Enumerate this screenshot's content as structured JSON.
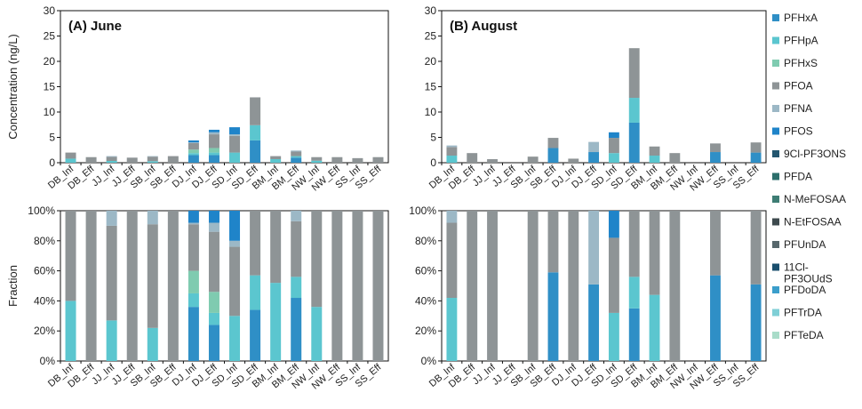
{
  "chart_data": {
    "type": "stacked-bar",
    "legend": [
      {
        "name": "PFHxA",
        "color": "#2f8fc6"
      },
      {
        "name": "PFHpA",
        "color": "#5bc6cf"
      },
      {
        "name": "PFHxS",
        "color": "#7fcbb0"
      },
      {
        "name": "PFOA",
        "color": "#8e9496"
      },
      {
        "name": "PFNA",
        "color": "#9cb8c6"
      },
      {
        "name": "PFOS",
        "color": "#1f84c9"
      },
      {
        "name": "9Cl-PF3ONS",
        "color": "#23566f"
      },
      {
        "name": "PFDA",
        "color": "#2d6f6c"
      },
      {
        "name": "N-MeFOSAA",
        "color": "#3e7d74"
      },
      {
        "name": "N-EtFOSAA",
        "color": "#3e4a4e"
      },
      {
        "name": "PFUnDA",
        "color": "#57686c"
      },
      {
        "name": "11Cl-PF3OUdS",
        "color": "#1a4f6e"
      },
      {
        "name": "PFDoDA",
        "color": "#3b9ecb"
      },
      {
        "name": "PFTrDA",
        "color": "#7fcfd6"
      },
      {
        "name": "PFTeDA",
        "color": "#a9dcc9"
      }
    ],
    "categories": [
      "DB_Inf",
      "DB_Eff",
      "JJ_Inf",
      "JJ_Eff",
      "SB_Inf",
      "SB_Eff",
      "DJ_Inf",
      "DJ_Eff",
      "SD_Inf",
      "SD_Eff",
      "BM_Inf",
      "BM_Eff",
      "NW_Inf",
      "NW_Eff",
      "SS_Inf",
      "SS_Eff"
    ],
    "concentration_axis": {
      "ylabel": "Concentration (ng/L)",
      "ylim": [
        0,
        30
      ],
      "ticks": [
        "0",
        "5",
        "10",
        "15",
        "20",
        "25",
        "30"
      ]
    },
    "fraction_axis": {
      "ylabel": "Fraction",
      "ylim": [
        0,
        100
      ],
      "ticks": [
        "0%",
        "20%",
        "40%",
        "60%",
        "80%",
        "100%"
      ]
    },
    "panels": [
      {
        "title": "(A) June",
        "concentration": [
          [
            {
              "s": "PFHpA",
              "v": 0.8
            },
            {
              "s": "PFOA",
              "v": 1.2
            }
          ],
          [
            {
              "s": "PFOA",
              "v": 1.1
            }
          ],
          [
            {
              "s": "PFHpA",
              "v": 0.35
            },
            {
              "s": "PFOA",
              "v": 0.8
            },
            {
              "s": "PFNA",
              "v": 0.15
            }
          ],
          [
            {
              "s": "PFOA",
              "v": 1.0
            }
          ],
          [
            {
              "s": "PFHpA",
              "v": 0.3
            },
            {
              "s": "PFOA",
              "v": 0.9
            },
            {
              "s": "PFNA",
              "v": 0.1
            }
          ],
          [
            {
              "s": "PFOA",
              "v": 1.3
            }
          ],
          [
            {
              "s": "PFHxA",
              "v": 1.5
            },
            {
              "s": "PFHpA",
              "v": 0.4
            },
            {
              "s": "PFHxS",
              "v": 0.7
            },
            {
              "s": "PFOA",
              "v": 1.3
            },
            {
              "s": "PFNA",
              "v": 0.1
            },
            {
              "s": "PFOS",
              "v": 0.4
            }
          ],
          [
            {
              "s": "PFHxA",
              "v": 1.5
            },
            {
              "s": "PFHpA",
              "v": 0.5
            },
            {
              "s": "PFHxS",
              "v": 0.9
            },
            {
              "s": "PFOA",
              "v": 2.7
            },
            {
              "s": "PFNA",
              "v": 0.4
            },
            {
              "s": "PFOS",
              "v": 0.5
            }
          ],
          [
            {
              "s": "PFHpA",
              "v": 2.0
            },
            {
              "s": "PFOA",
              "v": 3.3
            },
            {
              "s": "PFNA",
              "v": 0.3
            },
            {
              "s": "PFOS",
              "v": 1.4
            }
          ],
          [
            {
              "s": "PFHxA",
              "v": 4.4
            },
            {
              "s": "PFHpA",
              "v": 3.0
            },
            {
              "s": "PFOA",
              "v": 5.5
            }
          ],
          [
            {
              "s": "PFHpA",
              "v": 0.7
            },
            {
              "s": "PFOA",
              "v": 0.6
            }
          ],
          [
            {
              "s": "PFHxA",
              "v": 1.0
            },
            {
              "s": "PFHpA",
              "v": 0.3
            },
            {
              "s": "PFOA",
              "v": 0.9
            },
            {
              "s": "PFNA",
              "v": 0.2
            }
          ],
          [
            {
              "s": "PFHpA",
              "v": 0.4
            },
            {
              "s": "PFOA",
              "v": 0.7
            }
          ],
          [
            {
              "s": "PFOA",
              "v": 1.1
            }
          ],
          [
            {
              "s": "PFOA",
              "v": 0.9
            }
          ],
          [
            {
              "s": "PFOA",
              "v": 1.1
            }
          ]
        ],
        "fraction": [
          [
            {
              "s": "PFHpA",
              "v": 40
            },
            {
              "s": "PFOA",
              "v": 60
            }
          ],
          [
            {
              "s": "PFOA",
              "v": 100
            }
          ],
          [
            {
              "s": "PFHpA",
              "v": 27
            },
            {
              "s": "PFOA",
              "v": 63
            },
            {
              "s": "PFNA",
              "v": 10
            }
          ],
          [
            {
              "s": "PFOA",
              "v": 100
            }
          ],
          [
            {
              "s": "PFHpA",
              "v": 22
            },
            {
              "s": "PFOA",
              "v": 69
            },
            {
              "s": "PFNA",
              "v": 9
            }
          ],
          [
            {
              "s": "PFOA",
              "v": 100
            }
          ],
          [
            {
              "s": "PFHxA",
              "v": 36
            },
            {
              "s": "PFHpA",
              "v": 9
            },
            {
              "s": "PFHxS",
              "v": 15
            },
            {
              "s": "PFOA",
              "v": 31
            },
            {
              "s": "PFNA",
              "v": 1
            },
            {
              "s": "PFOS",
              "v": 8
            }
          ],
          [
            {
              "s": "PFHxA",
              "v": 24
            },
            {
              "s": "PFHpA",
              "v": 8
            },
            {
              "s": "PFHxS",
              "v": 14
            },
            {
              "s": "PFOA",
              "v": 40
            },
            {
              "s": "PFNA",
              "v": 6
            },
            {
              "s": "PFOS",
              "v": 8
            }
          ],
          [
            {
              "s": "PFHpA",
              "v": 30
            },
            {
              "s": "PFOA",
              "v": 46
            },
            {
              "s": "PFNA",
              "v": 4
            },
            {
              "s": "PFOS",
              "v": 20
            }
          ],
          [
            {
              "s": "PFHxA",
              "v": 34
            },
            {
              "s": "PFHpA",
              "v": 23
            },
            {
              "s": "PFOA",
              "v": 43
            }
          ],
          [
            {
              "s": "PFHpA",
              "v": 52
            },
            {
              "s": "PFOA",
              "v": 48
            }
          ],
          [
            {
              "s": "PFHxA",
              "v": 42
            },
            {
              "s": "PFHpA",
              "v": 14
            },
            {
              "s": "PFOA",
              "v": 37
            },
            {
              "s": "PFNA",
              "v": 7
            }
          ],
          [
            {
              "s": "PFHpA",
              "v": 36
            },
            {
              "s": "PFOA",
              "v": 64
            }
          ],
          [
            {
              "s": "PFOA",
              "v": 100
            }
          ],
          [
            {
              "s": "PFOA",
              "v": 100
            }
          ],
          [
            {
              "s": "PFOA",
              "v": 100
            }
          ]
        ]
      },
      {
        "title": "(B) August",
        "concentration": [
          [
            {
              "s": "PFHpA",
              "v": 1.4
            },
            {
              "s": "PFOA",
              "v": 1.7
            },
            {
              "s": "PFNA",
              "v": 0.3
            }
          ],
          [
            {
              "s": "PFOA",
              "v": 1.9
            }
          ],
          [
            {
              "s": "PFOA",
              "v": 0.7
            }
          ],
          [],
          [
            {
              "s": "PFOA",
              "v": 1.2
            }
          ],
          [
            {
              "s": "PFHxA",
              "v": 2.9
            },
            {
              "s": "PFOA",
              "v": 2.0
            }
          ],
          [
            {
              "s": "PFOA",
              "v": 0.8
            }
          ],
          [
            {
              "s": "PFHxA",
              "v": 2.1
            },
            {
              "s": "PFNA",
              "v": 2.0
            }
          ],
          [
            {
              "s": "PFHpA",
              "v": 1.9
            },
            {
              "s": "PFOA",
              "v": 3.0
            },
            {
              "s": "PFOS",
              "v": 1.1
            }
          ],
          [
            {
              "s": "PFHxA",
              "v": 7.9
            },
            {
              "s": "PFHpA",
              "v": 4.9
            },
            {
              "s": "PFOA",
              "v": 9.8
            }
          ],
          [
            {
              "s": "PFHpA",
              "v": 1.4
            },
            {
              "s": "PFOA",
              "v": 1.8
            }
          ],
          [
            {
              "s": "PFOA",
              "v": 1.9
            }
          ],
          [],
          [
            {
              "s": "PFHxA",
              "v": 2.1
            },
            {
              "s": "PFOA",
              "v": 1.7
            }
          ],
          [],
          [
            {
              "s": "PFHxA",
              "v": 2.0
            },
            {
              "s": "PFOA",
              "v": 2.0
            }
          ]
        ],
        "fraction": [
          [
            {
              "s": "PFHpA",
              "v": 42
            },
            {
              "s": "PFOA",
              "v": 50
            },
            {
              "s": "PFNA",
              "v": 8
            }
          ],
          [
            {
              "s": "PFOA",
              "v": 100
            }
          ],
          [
            {
              "s": "PFOA",
              "v": 100
            }
          ],
          [],
          [
            {
              "s": "PFOA",
              "v": 100
            }
          ],
          [
            {
              "s": "PFHxA",
              "v": 59
            },
            {
              "s": "PFOA",
              "v": 41
            }
          ],
          [
            {
              "s": "PFOA",
              "v": 100
            }
          ],
          [
            {
              "s": "PFHxA",
              "v": 51
            },
            {
              "s": "PFNA",
              "v": 49
            }
          ],
          [
            {
              "s": "PFHpA",
              "v": 32
            },
            {
              "s": "PFOA",
              "v": 50
            },
            {
              "s": "PFOS",
              "v": 18
            }
          ],
          [
            {
              "s": "PFHxA",
              "v": 35
            },
            {
              "s": "PFHpA",
              "v": 21
            },
            {
              "s": "PFOA",
              "v": 44
            }
          ],
          [
            {
              "s": "PFHpA",
              "v": 44
            },
            {
              "s": "PFOA",
              "v": 56
            }
          ],
          [
            {
              "s": "PFOA",
              "v": 100
            }
          ],
          [],
          [
            {
              "s": "PFHxA",
              "v": 57
            },
            {
              "s": "PFOA",
              "v": 43
            }
          ],
          [],
          [
            {
              "s": "PFHxA",
              "v": 51
            },
            {
              "s": "PFOA",
              "v": 49
            }
          ]
        ]
      }
    ]
  }
}
